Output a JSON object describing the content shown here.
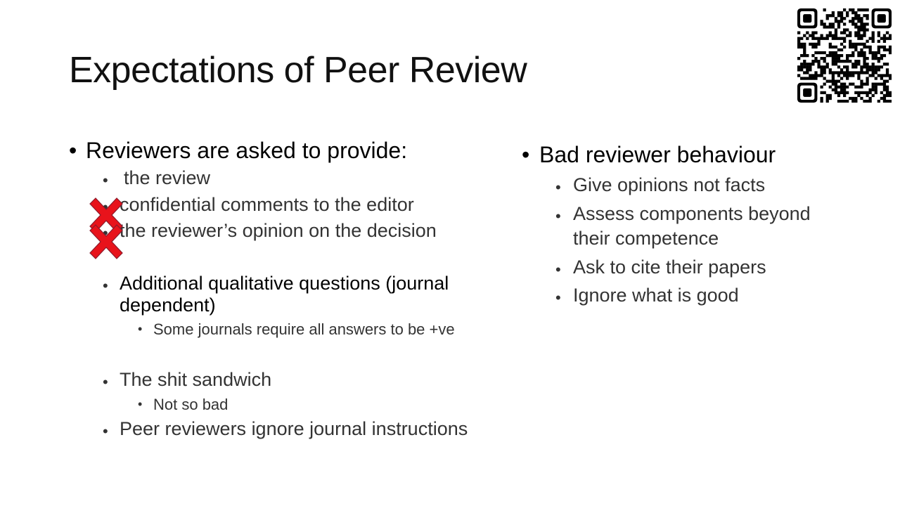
{
  "slide": {
    "title": "Expectations of Peer Review"
  },
  "left_column": {
    "heading": "Reviewers are asked to provide:",
    "items": [
      "the review",
      "confidential comments to the editor",
      "the reviewer’s opinion on the decision",
      "Additional qualitative questions (journal",
      "dependent)",
      "Some journals require all answers to be +ve",
      "The shit sandwich",
      "Not so bad",
      "Peer reviewers ignore journal instructions"
    ]
  },
  "right_column": {
    "heading": "Bad reviewer behaviour",
    "items": [
      "Give opinions not facts",
      "Assess components beyond",
      "their competence",
      "Ask to cite their papers",
      "Ignore what is good"
    ]
  },
  "icons": {
    "bullet": "bullet-dot",
    "cross": "red-x-mark",
    "qr": "qr-code"
  },
  "colors": {
    "cross_fill": "#e8131b",
    "cross_stroke": "#8b1a2b"
  }
}
